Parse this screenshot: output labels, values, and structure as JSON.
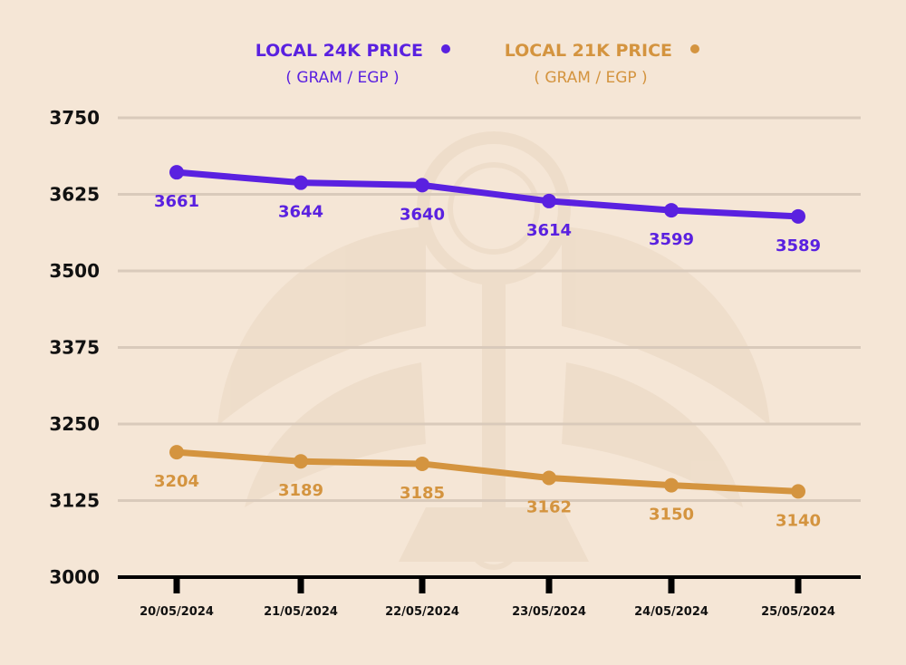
{
  "colors": {
    "background": "#f5e6d6",
    "grid": "#d9cabb",
    "axis": "#000000",
    "watermark": "#ead7c2"
  },
  "legend": [
    {
      "title": "LOCAL 24K PRICE",
      "unit": "( GRAM /  EGP )",
      "color": "#5a21e0"
    },
    {
      "title": "LOCAL 21K PRICE",
      "unit": "( GRAM /  EGP )",
      "color": "#d4943f"
    }
  ],
  "chart_data": {
    "type": "line",
    "title": "",
    "xlabel": "",
    "ylabel": "",
    "categories": [
      "20/05/2024",
      "21/05/2024",
      "22/05/2024",
      "23/05/2024",
      "24/05/2024",
      "25/05/2024"
    ],
    "ylim": [
      3000,
      3750
    ],
    "yticks": [
      "3750",
      "3625",
      "3500",
      "3375",
      "3250",
      "3125",
      "3000"
    ],
    "grid": true,
    "legend_position": "top",
    "series": [
      {
        "name": "LOCAL 24K PRICE",
        "color": "#5a21e0",
        "values": [
          3661,
          3644,
          3640,
          3614,
          3599,
          3589
        ]
      },
      {
        "name": "LOCAL 21K PRICE",
        "color": "#d4943f",
        "values": [
          3204,
          3189,
          3185,
          3162,
          3150,
          3140
        ]
      }
    ]
  }
}
